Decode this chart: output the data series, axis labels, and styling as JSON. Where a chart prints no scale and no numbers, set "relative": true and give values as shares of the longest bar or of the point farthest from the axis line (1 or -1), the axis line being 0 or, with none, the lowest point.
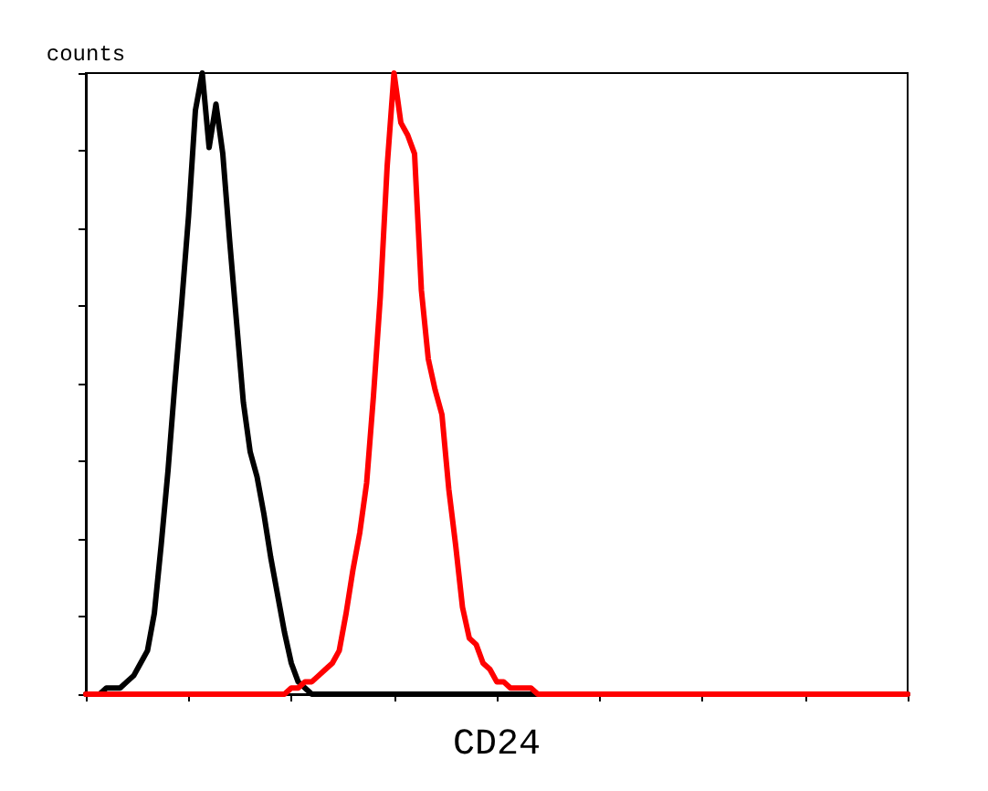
{
  "chart_data": {
    "type": "line",
    "relative": true,
    "xlabel": "CD24",
    "ylabel": "counts",
    "categories": [
      null,
      null,
      null,
      null,
      null,
      null,
      null,
      null,
      null,
      null,
      null,
      null,
      null,
      null,
      null,
      null,
      null,
      null,
      null,
      null,
      null,
      null,
      null,
      null,
      null,
      null,
      null,
      null,
      null,
      null,
      null,
      null,
      null,
      null,
      null,
      null,
      null,
      null,
      null,
      null,
      null,
      null,
      null,
      null,
      null,
      null,
      null,
      null,
      null,
      null,
      null,
      null,
      null,
      null,
      null,
      null,
      null,
      null,
      null,
      null,
      null,
      null,
      null,
      null,
      null,
      null,
      null,
      null,
      null,
      null,
      null,
      null,
      null,
      null,
      null,
      null,
      null,
      null,
      null,
      null,
      null,
      null,
      null,
      null,
      null,
      null,
      null,
      null,
      null,
      null,
      null,
      null,
      null,
      null,
      null,
      null,
      null,
      null,
      null,
      null,
      null,
      null,
      null,
      null,
      null,
      null,
      null,
      null,
      null,
      null,
      null,
      null,
      null,
      null,
      null,
      null,
      null,
      null,
      null,
      null,
      null
    ],
    "series": [
      {
        "color": "#000000",
        "values": [
          0,
          0,
          0,
          0.01,
          0.01,
          0.01,
          0.02,
          0.03,
          0.05,
          0.07,
          0.13,
          0.24,
          0.36,
          0.5,
          0.63,
          0.77,
          0.94,
          1,
          0.88,
          0.95,
          0.87,
          0.73,
          0.6,
          0.47,
          0.39,
          0.35,
          0.29,
          0.22,
          0.16,
          0.1,
          0.05,
          0.02,
          0.01,
          0,
          0,
          0,
          0,
          0,
          0,
          0,
          0,
          0,
          0,
          0,
          0,
          0,
          0,
          0,
          0,
          0,
          0,
          0,
          0,
          0,
          0,
          0,
          0,
          0,
          0,
          0,
          0,
          0,
          0,
          0,
          0,
          0,
          0,
          0,
          0,
          0,
          0,
          0,
          0,
          0,
          0,
          0,
          0,
          0,
          0,
          0,
          0,
          0,
          0,
          0,
          0,
          0,
          0,
          0,
          0,
          0,
          0,
          0,
          0,
          0,
          0,
          0,
          0,
          0,
          0,
          0,
          0,
          0,
          0,
          0,
          0,
          0,
          0,
          0,
          0,
          0,
          0,
          0,
          0,
          0,
          0,
          0,
          0,
          0,
          0,
          0,
          0
        ]
      },
      {
        "color": "#ff0000",
        "values": [
          0,
          0,
          0,
          0,
          0,
          0,
          0,
          0,
          0,
          0,
          0,
          0,
          0,
          0,
          0,
          0,
          0,
          0,
          0,
          0,
          0,
          0,
          0,
          0,
          0,
          0,
          0,
          0,
          0,
          0,
          0.01,
          0.01,
          0.02,
          0.02,
          0.03,
          0.04,
          0.05,
          0.07,
          0.13,
          0.2,
          0.26,
          0.34,
          0.48,
          0.64,
          0.85,
          1,
          0.92,
          0.9,
          0.87,
          0.65,
          0.54,
          0.49,
          0.45,
          0.33,
          0.24,
          0.14,
          0.09,
          0.08,
          0.05,
          0.04,
          0.02,
          0.02,
          0.01,
          0.01,
          0.01,
          0.01,
          0,
          0,
          0,
          0,
          0,
          0,
          0,
          0,
          0,
          0,
          0,
          0,
          0,
          0,
          0,
          0,
          0,
          0,
          0,
          0,
          0,
          0,
          0,
          0,
          0,
          0,
          0,
          0,
          0,
          0,
          0,
          0,
          0,
          0,
          0,
          0,
          0,
          0,
          0,
          0,
          0,
          0,
          0,
          0,
          0,
          0,
          0,
          0,
          0,
          0,
          0,
          0,
          0,
          0,
          0
        ]
      }
    ]
  }
}
